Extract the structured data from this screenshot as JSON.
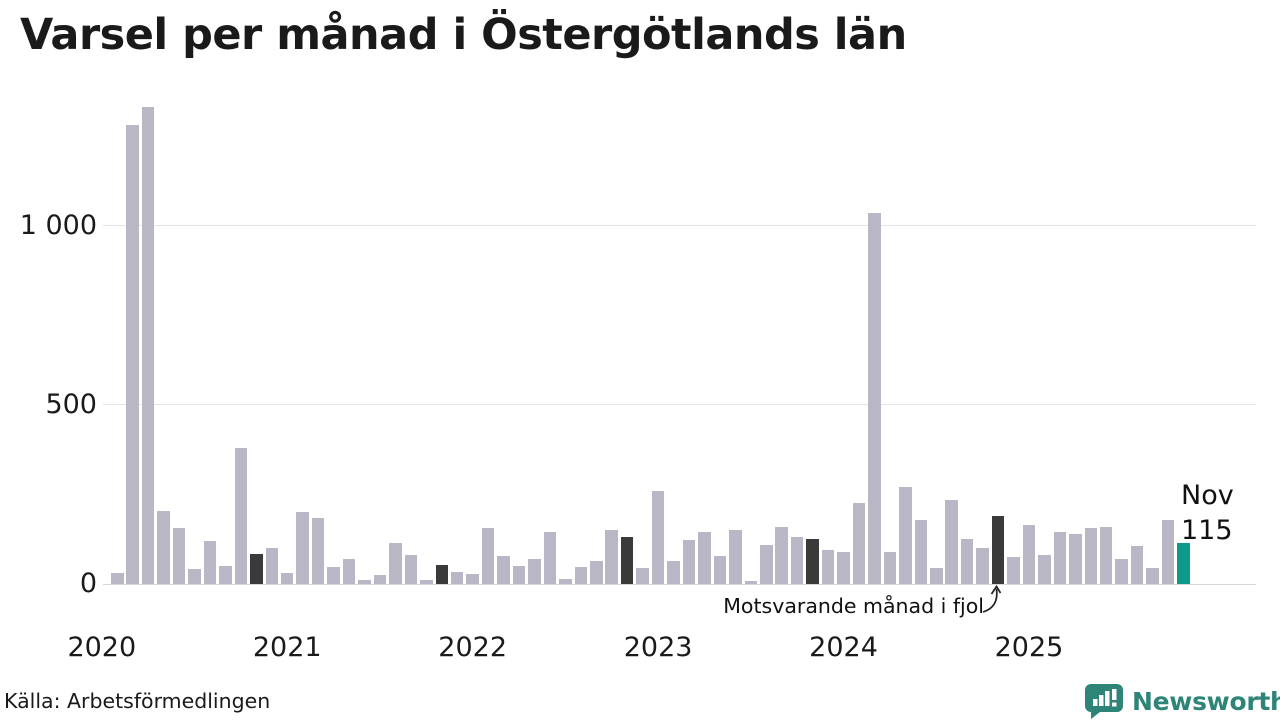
{
  "title": "Varsel per månad i Östergötlands län",
  "source": "Källa: Arbetsförmedlingen",
  "annotation": "Motsvarande månad i fjol",
  "last_point_label": {
    "month": "Nov",
    "value": "115"
  },
  "logo": {
    "name": "Newsworthy"
  },
  "colors": {
    "bar": "#b9b6c6",
    "bar_dark": "#3a3a3a",
    "bar_teal": "#0d9a8b",
    "grid": "#e4e4e4",
    "axis": "#d8d8d8",
    "text": "#1a1a1a",
    "logo": "#2e8577"
  },
  "chart_data": {
    "type": "bar",
    "title": "Varsel per månad i Östergötlands län",
    "xlabel": "",
    "ylabel": "",
    "ylim": [
      0,
      1400
    ],
    "grid": true,
    "legend": false,
    "x": [
      "2020-02",
      "2020-03",
      "2020-04",
      "2020-05",
      "2020-06",
      "2020-07",
      "2020-08",
      "2020-09",
      "2020-10",
      "2020-11",
      "2020-12",
      "2021-01",
      "2021-02",
      "2021-03",
      "2021-04",
      "2021-05",
      "2021-06",
      "2021-07",
      "2021-08",
      "2021-09",
      "2021-10",
      "2021-11",
      "2021-12",
      "2022-01",
      "2022-02",
      "2022-03",
      "2022-04",
      "2022-05",
      "2022-06",
      "2022-07",
      "2022-08",
      "2022-09",
      "2022-10",
      "2022-11",
      "2022-12",
      "2023-01",
      "2023-02",
      "2023-03",
      "2023-04",
      "2023-05",
      "2023-06",
      "2023-07",
      "2023-08",
      "2023-09",
      "2023-10",
      "2023-11",
      "2023-12",
      "2024-01",
      "2024-02",
      "2024-03",
      "2024-04",
      "2024-05",
      "2024-06",
      "2024-07",
      "2024-08",
      "2024-09",
      "2024-10",
      "2024-11",
      "2024-12",
      "2025-01",
      "2025-02",
      "2025-03",
      "2025-04",
      "2025-05",
      "2025-06",
      "2025-07",
      "2025-08",
      "2025-09",
      "2025-10",
      "2025-11"
    ],
    "values": [
      30,
      1280,
      1330,
      205,
      155,
      42,
      120,
      50,
      380,
      85,
      100,
      30,
      200,
      185,
      48,
      70,
      10,
      25,
      115,
      82,
      12,
      53,
      33,
      27,
      155,
      78,
      50,
      70,
      145,
      15,
      48,
      65,
      150,
      130,
      44,
      260,
      64,
      122,
      145,
      78,
      150,
      8,
      108,
      160,
      130,
      125,
      95,
      90,
      225,
      1035,
      90,
      270,
      180,
      45,
      235,
      125,
      100,
      190,
      75,
      165,
      80,
      145,
      140,
      155,
      160,
      70,
      105,
      45,
      180,
      115
    ],
    "dark_indices": [
      9,
      21,
      33,
      45,
      57
    ],
    "teal_index": 69,
    "dark_series_meaning": "Motsvarande månad i fjol",
    "teal_point": {
      "label": "Nov",
      "value": 115
    },
    "yticks": [
      {
        "value": 0,
        "label": "0"
      },
      {
        "value": 500,
        "label": "500"
      },
      {
        "value": 1000,
        "label": "1 000"
      }
    ],
    "year_labels": [
      "2020",
      "2021",
      "2022",
      "2023",
      "2024",
      "2025"
    ]
  }
}
